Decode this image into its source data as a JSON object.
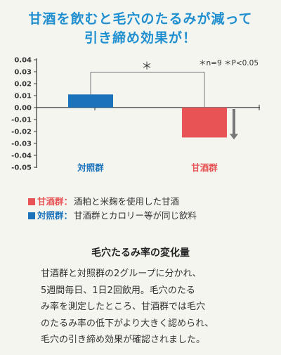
{
  "title": {
    "line1": "甘酒を飲むと毛穴のたるみが減って",
    "line2": "引き締め効果が！"
  },
  "chart_data": {
    "type": "bar",
    "categories": [
      "対照群",
      "甘酒群"
    ],
    "values": [
      0.011,
      -0.025
    ],
    "ylim": [
      -0.05,
      0.04
    ],
    "yticks": [
      "0.04",
      "0.03",
      "0.02",
      "0.01",
      "0.00",
      "-0.01",
      "-0.02",
      "-0.03",
      "-0.04",
      "-0.05"
    ],
    "significance_mark": "＊",
    "stats_note": "＊n=9 ＊P<0.05",
    "colors": {
      "control": "#1b73bc",
      "amazake": "#e85455",
      "arrow": "#777777",
      "category_label": "#1b73bc",
      "category_label_amazake": "#e85455"
    }
  },
  "legend": [
    {
      "name": "甘酒群",
      "colon": "：",
      "desc": "酒粕と米麹を使用した甘酒",
      "color": "#e85455"
    },
    {
      "name": "対照群",
      "colon": "：",
      "desc": "甘酒群とカロリー等が同じ飲料",
      "color": "#1b73bc"
    }
  ],
  "section": {
    "heading": "毛穴たるみ率の変化量",
    "body_lines": [
      "甘酒群と対照群の2グループに分かれ、",
      "5週間毎日、1日2回飲用。毛穴のたる",
      "み率を測定したところ、甘酒群では毛穴",
      "のたるみ率の低下がより大きく認められ、",
      "毛穴の引き締め効果が確認されました。"
    ]
  }
}
